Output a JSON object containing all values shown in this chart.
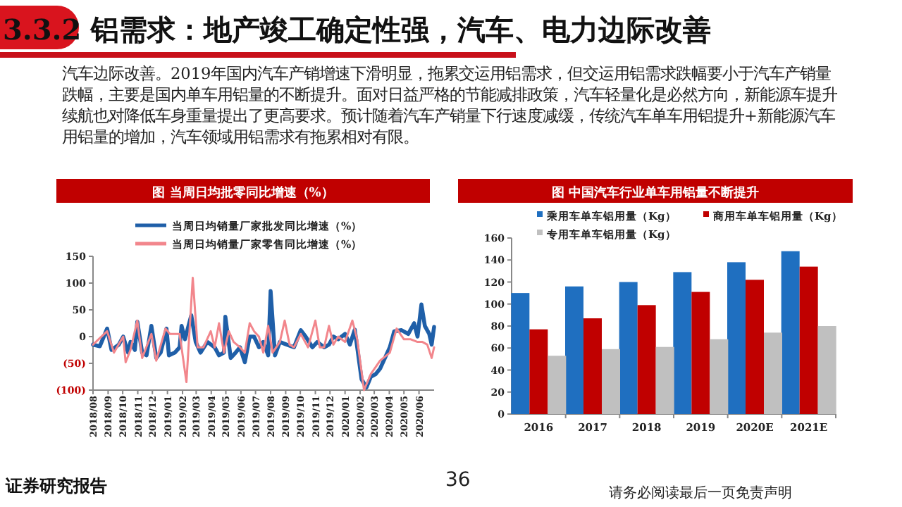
{
  "chart_data": [
    {
      "type": "other",
      "title": "3.3.2 铝需求：地产竣工确定性强，汽车、电力边际改善",
      "annotations": [
        "汽车边际改善。2019年国内汽车产销增速下滑明显，拖累交运用铝需求，但交运用铝需求跌幅要小于汽车产销量跌幅，主要是国内单车用铝量的不断提升。面对日益严格的节能减排政策，汽车轻量化是必然方向，新能源车提升续航也对降低车身重量提出了更高要求。预计随着汽车产销量下行速度减缓，传统汽车单车用铝提升+新能源汽车用铝量的增加，汽车领域用铝需求有拖累相对有限。",
        "证券研究报告",
        "36",
        "请务必阅读最后一页免责声明"
      ]
    },
    {
      "type": "line",
      "title": "图 当周日均批零同比增速（%）",
      "legend": "top",
      "xlim": [
        "2018-08-01",
        "2020-07-02"
      ],
      "xticks": [
        {
          "value": "2018-08-01",
          "label": "2018/08"
        },
        {
          "value": "2018-09-01",
          "label": "2018/09"
        },
        {
          "value": "2018-10-01",
          "label": "2018/10"
        },
        {
          "value": "2018-11-01",
          "label": "2018/11"
        },
        {
          "value": "2018-12-01",
          "label": "2018/12"
        },
        {
          "value": "2019-01-01",
          "label": "2019/01"
        },
        {
          "value": "2019-02-01",
          "label": "2019/02"
        },
        {
          "value": "2019-03-01",
          "label": "2019/03"
        },
        {
          "value": "2019-04-01",
          "label": "2019/04"
        },
        {
          "value": "2019-05-01",
          "label": "2019/05"
        },
        {
          "value": "2019-06-01",
          "label": "2019/06"
        },
        {
          "value": "2019-07-01",
          "label": "2019/07"
        },
        {
          "value": "2019-08-01",
          "label": "2019/08"
        },
        {
          "value": "2019-09-01",
          "label": "2019/09"
        },
        {
          "value": "2019-10-01",
          "label": "2019/10"
        },
        {
          "value": "2019-11-01",
          "label": "2019/11"
        },
        {
          "value": "2019-12-01",
          "label": "2019/12"
        },
        {
          "value": "2020-01-01",
          "label": "2020/01"
        },
        {
          "value": "2020-02-01",
          "label": "2020/02"
        },
        {
          "value": "2020-03-01",
          "label": "2020/03"
        },
        {
          "value": "2020-04-01",
          "label": "2020/04"
        },
        {
          "value": "2020-05-01",
          "label": "2020/05"
        },
        {
          "value": "2020-06-01",
          "label": "2020/06"
        }
      ],
      "ylim": [
        -100,
        150
      ],
      "yticks": [
        {
          "value": -100,
          "label": "(100)"
        },
        {
          "value": -50,
          "label": "(50)"
        },
        0,
        50,
        100,
        150
      ],
      "series": [
        {
          "name": "当周日均销量厂家批发同比增速（%）",
          "color": "#1f5fa8",
          "x": [
            "2018-08-01",
            "2018-08-15",
            "2018-08-30",
            "2018-09-08",
            "2018-09-23",
            "2018-10-02",
            "2018-10-12",
            "2018-10-17",
            "2018-10-26",
            "2018-10-31",
            "2018-11-10",
            "2018-11-19",
            "2018-11-29",
            "2018-12-09",
            "2018-12-18",
            "2018-12-30",
            "2019-01-04",
            "2019-01-16",
            "2019-01-26",
            "2019-01-30",
            "2019-02-06",
            "2019-02-19",
            "2019-02-28",
            "2019-03-10",
            "2019-03-24",
            "2019-04-08",
            "2019-04-17",
            "2019-04-27",
            "2019-04-30",
            "2019-05-11",
            "2019-05-21",
            "2019-05-30",
            "2019-06-09",
            "2019-06-19",
            "2019-06-28",
            "2019-07-08",
            "2019-07-17",
            "2019-07-27",
            "2019-08-01",
            "2019-08-10",
            "2019-08-20",
            "2019-09-03",
            "2019-09-18",
            "2019-10-02",
            "2019-10-12",
            "2019-10-26",
            "2019-11-05",
            "2019-11-19",
            "2019-11-29",
            "2019-12-08",
            "2019-12-18",
            "2020-01-01",
            "2020-01-11",
            "2020-01-21",
            "2020-02-04",
            "2020-02-14",
            "2020-02-23",
            "2020-03-04",
            "2020-03-13",
            "2020-03-23",
            "2020-04-02",
            "2020-04-11",
            "2020-04-26",
            "2020-05-10",
            "2020-05-22",
            "2020-05-29",
            "2020-06-06",
            "2020-06-13",
            "2020-06-22",
            "2020-06-27",
            "2020-07-02"
          ],
          "values": [
            -15,
            -18,
            15,
            -25,
            -15,
            0,
            -30,
            -10,
            -25,
            28,
            -30,
            -35,
            20,
            -40,
            -30,
            15,
            -35,
            -30,
            -20,
            20,
            -5,
            40,
            -10,
            -30,
            -10,
            -20,
            -35,
            -30,
            37,
            -40,
            -30,
            -20,
            -48,
            0,
            0,
            -20,
            -10,
            -35,
            85,
            -35,
            -10,
            -15,
            -20,
            12,
            0,
            -20,
            -10,
            -20,
            -15,
            0,
            -5,
            5,
            -15,
            13,
            -80,
            -95,
            -75,
            -70,
            -60,
            -40,
            -20,
            10,
            12,
            5,
            25,
            0,
            60,
            20,
            5,
            -15,
            18
          ]
        },
        {
          "name": "当周日均销量厂家零售同比增速（%）",
          "color": "#f2868c",
          "x": [
            "2018-08-01",
            "2018-08-30",
            "2018-09-13",
            "2018-10-02",
            "2018-10-07",
            "2018-10-17",
            "2018-10-31",
            "2018-11-10",
            "2018-11-29",
            "2018-12-09",
            "2018-12-28",
            "2019-01-06",
            "2019-01-26",
            "2019-02-09",
            "2019-02-22",
            "2019-03-04",
            "2019-03-16",
            "2019-03-31",
            "2019-04-08",
            "2019-04-17",
            "2019-04-27",
            "2019-05-07",
            "2019-05-17",
            "2019-05-30",
            "2019-06-09",
            "2019-06-19",
            "2019-06-28",
            "2019-07-08",
            "2019-07-17",
            "2019-07-27",
            "2019-08-05",
            "2019-08-20",
            "2019-08-30",
            "2019-09-09",
            "2019-09-18",
            "2019-10-02",
            "2019-10-17",
            "2019-11-01",
            "2019-11-10",
            "2019-11-19",
            "2019-11-29",
            "2019-12-08",
            "2019-12-18",
            "2020-01-01",
            "2020-01-16",
            "2020-01-26",
            "2020-02-09",
            "2020-02-23",
            "2020-03-13",
            "2020-04-02",
            "2020-04-16",
            "2020-05-01",
            "2020-05-15",
            "2020-05-29",
            "2020-06-08",
            "2020-06-18",
            "2020-06-27",
            "2020-07-02"
          ],
          "values": [
            -15,
            10,
            -30,
            0,
            -48,
            -25,
            30,
            -40,
            5,
            -45,
            15,
            5,
            5,
            -85,
            110,
            -20,
            -20,
            10,
            -20,
            25,
            -30,
            10,
            -10,
            -20,
            -30,
            25,
            10,
            0,
            -30,
            20,
            -30,
            -10,
            30,
            -15,
            -20,
            5,
            -20,
            30,
            -20,
            -20,
            20,
            -15,
            0,
            -10,
            30,
            -5,
            -100,
            -70,
            -45,
            -30,
            15,
            -5,
            -5,
            -10,
            -10,
            -15,
            -40,
            -20
          ]
        }
      ]
    },
    {
      "type": "bar",
      "title": "图 中国汽车行业单车用铝量不断提升",
      "legend": "top",
      "categories": [
        "2016",
        "2017",
        "2018",
        "2019",
        "2020E",
        "2021E"
      ],
      "ylim": [
        0,
        160
      ],
      "yticks": [
        0,
        20,
        40,
        60,
        80,
        100,
        120,
        140,
        160
      ],
      "series": [
        {
          "name": "乘用车单车铝用量（Kg）",
          "color": "#1f6fc0",
          "values": [
            110,
            116,
            120,
            129,
            138,
            148
          ]
        },
        {
          "name": "商用车单车铝用量（Kg）",
          "color": "#c00000",
          "values": [
            77,
            87,
            99,
            111,
            122,
            134
          ]
        },
        {
          "name": "专用车单车铝用量（Kg）",
          "color": "#c0c0c0",
          "values": [
            53,
            59,
            61,
            68,
            74,
            80
          ]
        }
      ]
    }
  ]
}
